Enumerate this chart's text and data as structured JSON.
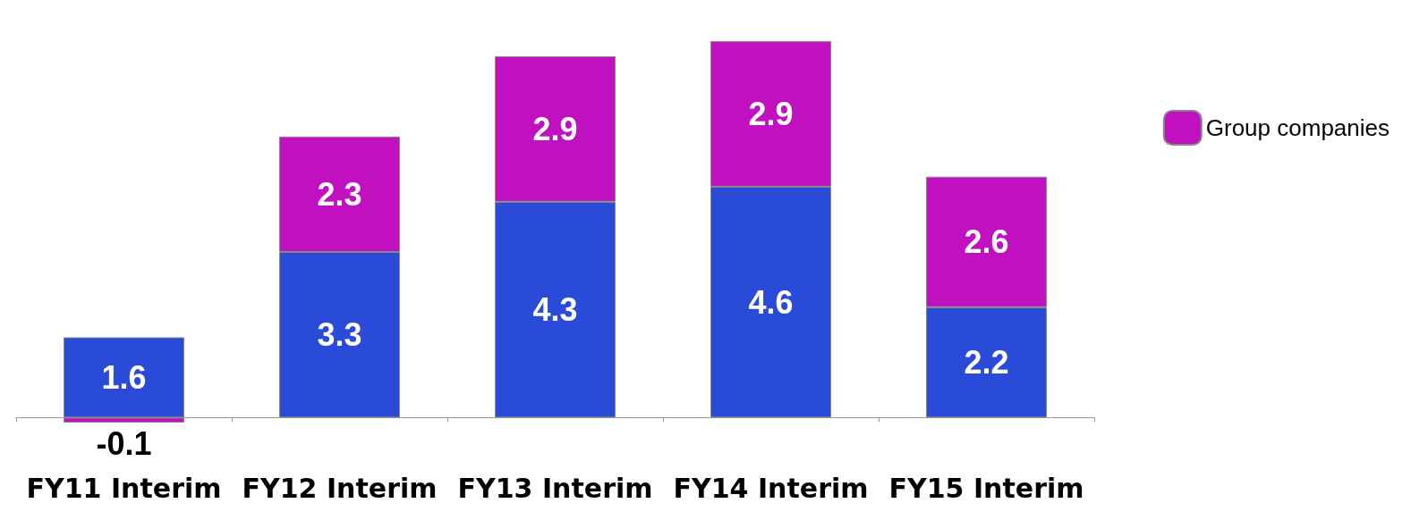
{
  "chart_data": {
    "type": "bar",
    "stacked": true,
    "categories": [
      "FY11 Interim",
      "FY12 Interim",
      "FY13 Interim",
      "FY14 Interim",
      "FY15 Interim"
    ],
    "series": [
      {
        "color": "#2a4ad8",
        "values": [
          1.6,
          3.3,
          4.3,
          4.6,
          2.2
        ]
      },
      {
        "name": "Group companies",
        "color": "#c010c0",
        "values": [
          -0.1,
          2.3,
          2.9,
          2.9,
          2.6
        ]
      }
    ],
    "data_labels": true,
    "legend": "right"
  }
}
